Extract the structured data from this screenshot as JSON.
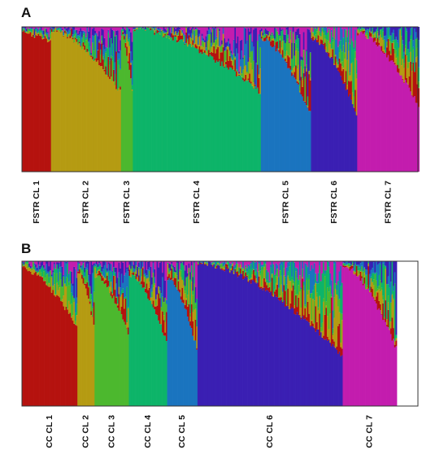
{
  "chart_data": [
    {
      "type": "stacked-bar",
      "panel": "A",
      "description_note": "Structure-style membership plot: each vertical bar is an individual, colored segments are cluster membership proportions (0-1), ordered by dominant cluster.",
      "ylim": [
        0,
        1
      ],
      "cluster_colors": [
        "#b5120f",
        "#b59b12",
        "#4cb82e",
        "#0db469",
        "#1a74bf",
        "#3a1fb3",
        "#c31cae"
      ],
      "groups": [
        {
          "label": "FSTR CL 1",
          "cluster": 0,
          "width_share": 0.074,
          "dominant_start": 0.96,
          "dominant_end": 0.9
        },
        {
          "label": "FSTR CL 2",
          "cluster": 1,
          "width_share": 0.175,
          "dominant_start": 0.98,
          "dominant_end": 0.55
        },
        {
          "label": "FSTR CL 3",
          "cluster": 2,
          "width_share": 0.029,
          "dominant_start": 0.95,
          "dominant_end": 0.55
        },
        {
          "label": "FSTR CL 4",
          "cluster": 3,
          "width_share": 0.324,
          "dominant_start": 0.99,
          "dominant_end": 0.55
        },
        {
          "label": "FSTR CL 5",
          "cluster": 4,
          "width_share": 0.125,
          "dominant_start": 0.92,
          "dominant_end": 0.4
        },
        {
          "label": "FSTR CL 6",
          "cluster": 5,
          "width_share": 0.115,
          "dominant_start": 0.92,
          "dominant_end": 0.4
        },
        {
          "label": "FSTR CL 7",
          "cluster": 6,
          "width_share": 0.158,
          "dominant_start": 0.96,
          "dominant_end": 0.45
        }
      ]
    },
    {
      "type": "stacked-bar",
      "panel": "B",
      "ylim": [
        0,
        1
      ],
      "cluster_colors": [
        "#b5120f",
        "#b59b12",
        "#4cb82e",
        "#0db469",
        "#1a74bf",
        "#3a1fb3",
        "#c31cae"
      ],
      "groups": [
        {
          "label": "CC CL 1",
          "cluster": 0,
          "width_share": 0.139,
          "dominant_start": 0.95,
          "dominant_end": 0.55
        },
        {
          "label": "CC CL 2",
          "cluster": 1,
          "width_share": 0.043,
          "dominant_start": 0.92,
          "dominant_end": 0.55
        },
        {
          "label": "CC CL 3",
          "cluster": 2,
          "width_share": 0.087,
          "dominant_start": 0.9,
          "dominant_end": 0.5
        },
        {
          "label": "CC CL 4",
          "cluster": 3,
          "width_share": 0.097,
          "dominant_start": 0.9,
          "dominant_end": 0.45
        },
        {
          "label": "CC CL 5",
          "cluster": 4,
          "width_share": 0.078,
          "dominant_start": 0.88,
          "dominant_end": 0.4
        },
        {
          "label": "CC CL 6",
          "cluster": 5,
          "width_share": 0.368,
          "dominant_start": 0.99,
          "dominant_end": 0.35
        },
        {
          "label": "CC CL 7",
          "cluster": 6,
          "width_share": 0.138,
          "dominant_start": 0.97,
          "dominant_end": 0.4
        }
      ]
    }
  ],
  "panels": {
    "a_letter": "A",
    "b_letter": "B"
  }
}
